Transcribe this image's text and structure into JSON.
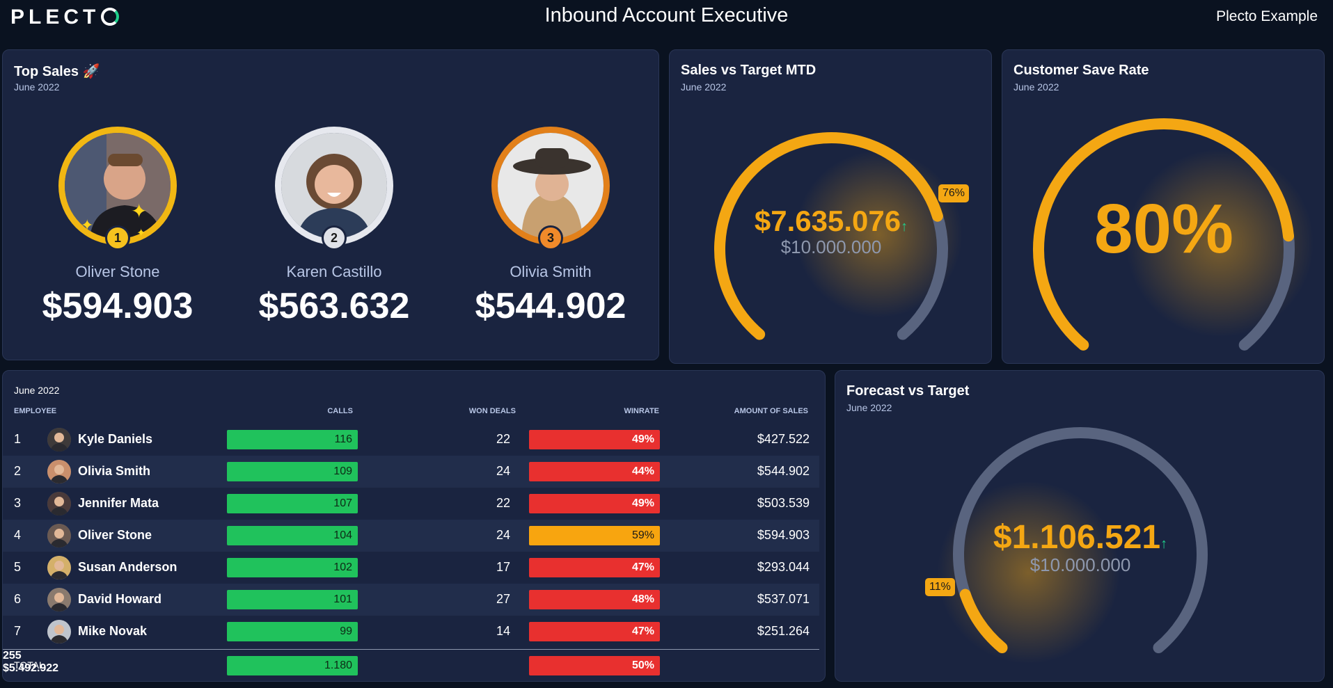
{
  "header": {
    "logo": "PLECT",
    "title": "Inbound Account Executive",
    "account": "Plecto Example"
  },
  "top_sales": {
    "title": "Top Sales 🚀",
    "period": "June 2022",
    "podium": [
      {
        "rank": "1",
        "name": "Oliver Stone",
        "amount": "$594.903",
        "ring_color": "#f1b713",
        "badge_color": "#f6c21e"
      },
      {
        "rank": "2",
        "name": "Karen Castillo",
        "amount": "$563.632",
        "ring_color": "#e6e8ee",
        "badge_color": "#e0e2e8"
      },
      {
        "rank": "3",
        "name": "Olivia Smith",
        "amount": "$544.902",
        "ring_color": "#e2801a",
        "badge_color": "#f08a2a"
      }
    ]
  },
  "sales_vs_target": {
    "title": "Sales vs Target MTD",
    "period": "June 2022",
    "value": "$7.635.076",
    "target": "$10.000.000",
    "percent_label": "76%",
    "fraction": 0.76
  },
  "save_rate": {
    "title": "Customer Save Rate",
    "period": "June 2022",
    "value": "80%",
    "fraction": 0.8
  },
  "forecast": {
    "title": "Forecast vs Target",
    "period": "June 2022",
    "value": "$1.106.521",
    "target": "$10.000.000",
    "percent_label": "11%",
    "fraction": 0.11
  },
  "table": {
    "period": "June 2022",
    "columns": {
      "employee": "EMPLOYEE",
      "calls": "CALLS",
      "won": "WON DEALS",
      "winrate": "WINRATE",
      "amount": "AMOUNT OF SALES"
    },
    "rows": [
      {
        "rank": "1",
        "name": "Kyle Daniels",
        "calls": "116",
        "won": "22",
        "winrate": "49%",
        "amount": "$427.522"
      },
      {
        "rank": "2",
        "name": "Olivia Smith",
        "calls": "109",
        "won": "24",
        "winrate": "44%",
        "amount": "$544.902"
      },
      {
        "rank": "3",
        "name": "Jennifer Mata",
        "calls": "107",
        "won": "22",
        "winrate": "49%",
        "amount": "$503.539"
      },
      {
        "rank": "4",
        "name": "Oliver Stone",
        "calls": "104",
        "won": "24",
        "winrate": "59%",
        "amount": "$594.903"
      },
      {
        "rank": "5",
        "name": "Susan Anderson",
        "calls": "102",
        "won": "17",
        "winrate": "47%",
        "amount": "$293.044"
      },
      {
        "rank": "6",
        "name": "David Howard",
        "calls": "101",
        "won": "27",
        "winrate": "48%",
        "amount": "$537.071"
      },
      {
        "rank": "7",
        "name": "Mike Novak",
        "calls": "99",
        "won": "14",
        "winrate": "47%",
        "amount": "$251.264"
      }
    ],
    "total": {
      "label": "TOTAL",
      "calls": "1.180",
      "won": "255",
      "winrate": "50%",
      "amount": "$5.492.922"
    }
  },
  "colors": {
    "background": "#0a1220",
    "card": "#1a2440",
    "accent": "#f4a713",
    "gauge_track": "#59647f",
    "good": "#20c25c",
    "bad": "#e8302f",
    "warn": "#f8a50f"
  }
}
